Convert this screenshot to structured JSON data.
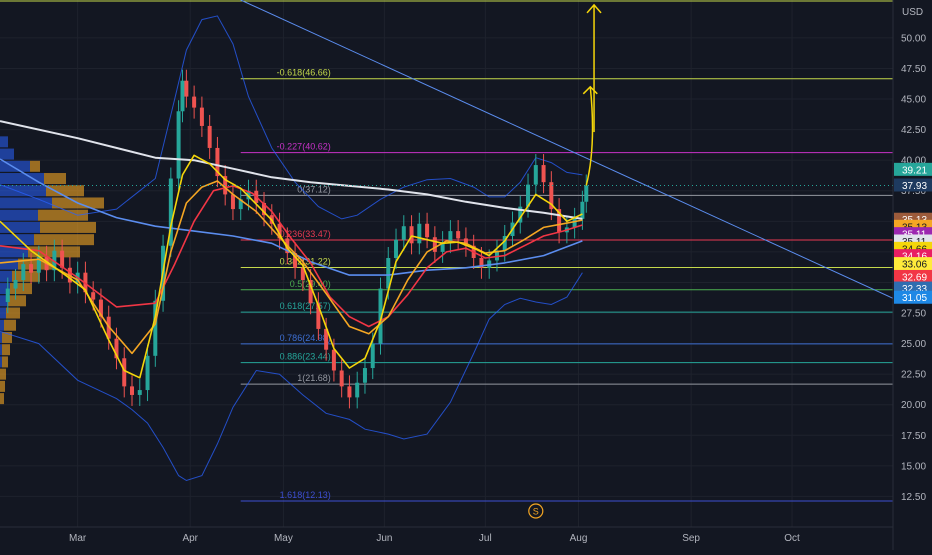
{
  "chart_data": {
    "type": "line",
    "symbol_currency": "USD",
    "price_axis": {
      "ylim": [
        10.0,
        53.1
      ],
      "ticks": [
        12.5,
        15.0,
        17.5,
        20.0,
        22.5,
        25.0,
        27.5,
        30.0,
        32.5,
        35.0,
        37.5,
        40.0,
        42.5,
        45.0,
        47.5,
        50.0
      ]
    },
    "time_axis": {
      "xlim": [
        0,
        230
      ],
      "months": [
        {
          "label": "Mar",
          "day": 20
        },
        {
          "label": "Apr",
          "day": 49
        },
        {
          "label": "May",
          "day": 73
        },
        {
          "label": "Jun",
          "day": 99
        },
        {
          "label": "Jul",
          "day": 125
        },
        {
          "label": "Aug",
          "day": 149
        },
        {
          "label": "Sep",
          "day": 178
        },
        {
          "label": "Oct",
          "day": 204
        }
      ]
    },
    "fib_levels": [
      {
        "label": "-0.618(46.66)",
        "value": 46.66,
        "color": "#c5d94b"
      },
      {
        "label": "-0.227(40.62)",
        "value": 40.62,
        "color": "#c832c8"
      },
      {
        "label": "0(37.12)",
        "value": 37.12,
        "color": "#9598a1"
      },
      {
        "label": "0.236(33.47)",
        "value": 33.47,
        "color": "#e83a52"
      },
      {
        "label": "0.382(31.22)",
        "value": 31.22,
        "color": "#c5d94b"
      },
      {
        "label": "0.5(29.40)",
        "value": 29.4,
        "color": "#4caf50"
      },
      {
        "label": "0.618(27.57)",
        "value": 27.57,
        "color": "#26a69a"
      },
      {
        "label": "0.786(24.98)",
        "value": 24.98,
        "color": "#3d6fd3"
      },
      {
        "label": "0.886(23.44)",
        "value": 23.44,
        "color": "#26a69a"
      },
      {
        "label": "1(21.68)",
        "value": 21.68,
        "color": "#9598a1"
      },
      {
        "label": "1.618(12.13)",
        "value": 12.13,
        "color": "#3d4fd3"
      }
    ],
    "price_tags": [
      {
        "label": "39.21",
        "value": 39.21,
        "color": "#26a69a",
        "text_color": "#ffffff"
      },
      {
        "label": "37.93",
        "value": 37.93,
        "color": "#1e3a5f",
        "text_color": "#ffffff"
      },
      {
        "label": "35.13",
        "value": 35.13,
        "color": "#9c5b3b",
        "text_color": "#ffffff"
      },
      {
        "label": "35.13",
        "value": 34.55,
        "color": "#f5a623",
        "text_color": "#131722"
      },
      {
        "label": "35.11",
        "value": 33.95,
        "color": "#9c27b0",
        "text_color": "#ffffff"
      },
      {
        "label": "35.11",
        "value": 33.35,
        "color": "#e0e3eb",
        "text_color": "#131722"
      },
      {
        "label": "34.66",
        "value": 32.75,
        "color": "#f5d60a",
        "text_color": "#131722"
      },
      {
        "label": "34.16",
        "value": 32.15,
        "color": "#e91e63",
        "text_color": "#ffffff"
      },
      {
        "label": "33.06",
        "value": 31.5,
        "color": "#ffeb3b",
        "text_color": "#131722"
      },
      {
        "label": "32.69",
        "value": 30.45,
        "color": "#f23645",
        "text_color": "#ffffff"
      },
      {
        "label": "32.33",
        "value": 29.5,
        "color": "#2f6db0",
        "text_color": "#ffffff"
      },
      {
        "label": "31.05",
        "value": 28.75,
        "color": "#1e88e5",
        "text_color": "#ffffff"
      }
    ],
    "closes": [
      [
        0,
        28.4
      ],
      [
        2,
        29.5
      ],
      [
        4,
        30.2
      ],
      [
        6,
        31.5
      ],
      [
        8,
        30.8
      ],
      [
        10,
        32.1
      ],
      [
        12,
        31.0
      ],
      [
        14,
        32.6
      ],
      [
        16,
        31.2
      ],
      [
        18,
        30.0
      ],
      [
        20,
        30.8
      ],
      [
        22,
        29.2
      ],
      [
        24,
        28.6
      ],
      [
        26,
        27.2
      ],
      [
        28,
        25.4
      ],
      [
        30,
        23.8
      ],
      [
        32,
        21.5
      ],
      [
        34,
        20.8
      ],
      [
        36,
        21.2
      ],
      [
        38,
        24.0
      ],
      [
        40,
        28.5
      ],
      [
        42,
        33.0
      ],
      [
        44,
        38.5
      ],
      [
        46,
        44.0
      ],
      [
        47,
        46.5
      ],
      [
        48,
        45.2
      ],
      [
        50,
        44.3
      ],
      [
        52,
        42.8
      ],
      [
        54,
        41.0
      ],
      [
        56,
        38.7
      ],
      [
        58,
        37.2
      ],
      [
        60,
        36.0
      ],
      [
        62,
        36.8
      ],
      [
        64,
        37.5
      ],
      [
        66,
        36.5
      ],
      [
        68,
        35.5
      ],
      [
        70,
        34.8
      ],
      [
        72,
        33.6
      ],
      [
        74,
        32.4
      ],
      [
        76,
        31.2
      ],
      [
        78,
        30.2
      ],
      [
        80,
        28.3
      ],
      [
        82,
        26.2
      ],
      [
        84,
        24.5
      ],
      [
        86,
        22.8
      ],
      [
        88,
        21.5
      ],
      [
        90,
        20.6
      ],
      [
        92,
        21.8
      ],
      [
        94,
        23.0
      ],
      [
        96,
        25.0
      ],
      [
        98,
        29.5
      ],
      [
        100,
        32.0
      ],
      [
        102,
        33.5
      ],
      [
        104,
        34.6
      ],
      [
        106,
        33.2
      ],
      [
        108,
        34.8
      ],
      [
        110,
        33.7
      ],
      [
        112,
        32.5
      ],
      [
        114,
        33.3
      ],
      [
        116,
        34.2
      ],
      [
        118,
        33.6
      ],
      [
        120,
        33.0
      ],
      [
        122,
        32.0
      ],
      [
        124,
        31.2
      ],
      [
        126,
        31.8
      ],
      [
        128,
        32.6
      ],
      [
        130,
        33.8
      ],
      [
        132,
        34.9
      ],
      [
        134,
        36.2
      ],
      [
        136,
        38.0
      ],
      [
        138,
        39.6
      ],
      [
        140,
        38.2
      ],
      [
        142,
        36.0
      ],
      [
        144,
        34.1
      ],
      [
        146,
        34.5
      ],
      [
        148,
        35.2
      ],
      [
        150,
        36.6
      ],
      [
        151,
        37.93
      ]
    ],
    "ma_series": [
      {
        "name": "",
        "color": "#e0e3eb",
        "width": 2.0,
        "points": [
          [
            0,
            43.2
          ],
          [
            20,
            41.8
          ],
          [
            40,
            40.2
          ],
          [
            50,
            40.0
          ],
          [
            60,
            39.3
          ],
          [
            70,
            38.6
          ],
          [
            80,
            38.2
          ],
          [
            90,
            37.9
          ],
          [
            100,
            37.6
          ],
          [
            110,
            37.2
          ],
          [
            120,
            36.6
          ],
          [
            130,
            36.1
          ],
          [
            140,
            35.7
          ],
          [
            150,
            35.2
          ]
        ]
      },
      {
        "name": "",
        "color": "#5b8def",
        "width": 1.6,
        "points": [
          [
            0,
            40.1
          ],
          [
            10,
            38.2
          ],
          [
            20,
            36.5
          ],
          [
            30,
            35.3
          ],
          [
            40,
            34.6
          ],
          [
            50,
            34.2
          ],
          [
            60,
            33.8
          ],
          [
            70,
            33.2
          ],
          [
            80,
            31.7
          ],
          [
            90,
            30.6
          ],
          [
            100,
            30.6
          ],
          [
            110,
            31.0
          ],
          [
            120,
            31.2
          ],
          [
            130,
            31.6
          ],
          [
            140,
            32.2
          ],
          [
            150,
            33.4
          ]
        ]
      },
      {
        "name": "",
        "color": "#f23645",
        "width": 1.6,
        "points": [
          [
            0,
            33.0
          ],
          [
            10,
            32.6
          ],
          [
            20,
            30.4
          ],
          [
            30,
            28.0
          ],
          [
            40,
            28.3
          ],
          [
            45,
            31.5
          ],
          [
            50,
            35.0
          ],
          [
            55,
            37.5
          ],
          [
            60,
            37.9
          ],
          [
            65,
            37.3
          ],
          [
            70,
            35.8
          ],
          [
            75,
            33.6
          ],
          [
            80,
            31.6
          ],
          [
            85,
            28.8
          ],
          [
            90,
            27.2
          ],
          [
            95,
            26.4
          ],
          [
            100,
            27.2
          ],
          [
            105,
            29.0
          ],
          [
            110,
            31.2
          ],
          [
            115,
            32.5
          ],
          [
            120,
            32.8
          ],
          [
            125,
            32.0
          ],
          [
            130,
            32.2
          ],
          [
            135,
            33.0
          ],
          [
            140,
            33.8
          ],
          [
            145,
            34.2
          ],
          [
            150,
            34.7
          ]
        ]
      },
      {
        "name": "",
        "color": "#f5a623",
        "width": 1.6,
        "points": [
          [
            0,
            31.6
          ],
          [
            10,
            31.9
          ],
          [
            20,
            30.2
          ],
          [
            28,
            26.4
          ],
          [
            34,
            24.2
          ],
          [
            40,
            26.6
          ],
          [
            44,
            32.5
          ],
          [
            48,
            36.5
          ],
          [
            52,
            37.8
          ],
          [
            56,
            38.3
          ],
          [
            60,
            37.2
          ],
          [
            66,
            35.8
          ],
          [
            72,
            33.7
          ],
          [
            78,
            31.7
          ],
          [
            84,
            29.1
          ],
          [
            90,
            26.4
          ],
          [
            95,
            25.8
          ],
          [
            100,
            27.2
          ],
          [
            105,
            30.2
          ],
          [
            110,
            32.5
          ],
          [
            115,
            33.4
          ],
          [
            120,
            33.2
          ],
          [
            125,
            32.4
          ],
          [
            130,
            32.6
          ],
          [
            135,
            33.5
          ],
          [
            140,
            34.5
          ],
          [
            145,
            34.8
          ],
          [
            150,
            35.1
          ]
        ]
      },
      {
        "name": "",
        "color": "#f5d60a",
        "width": 1.6,
        "points": [
          [
            0,
            35.0
          ],
          [
            8,
            32.6
          ],
          [
            16,
            30.8
          ],
          [
            22,
            29.4
          ],
          [
            28,
            25.3
          ],
          [
            32,
            22.8
          ],
          [
            36,
            22.2
          ],
          [
            40,
            27.2
          ],
          [
            44,
            34.6
          ],
          [
            47,
            38.8
          ],
          [
            50,
            40.4
          ],
          [
            54,
            39.7
          ],
          [
            58,
            38.4
          ],
          [
            62,
            37.7
          ],
          [
            66,
            36.4
          ],
          [
            70,
            35.1
          ],
          [
            74,
            32.8
          ],
          [
            78,
            31.4
          ],
          [
            82,
            28.1
          ],
          [
            86,
            24.6
          ],
          [
            90,
            23.0
          ],
          [
            94,
            23.8
          ],
          [
            98,
            26.9
          ],
          [
            102,
            31.7
          ],
          [
            106,
            33.8
          ],
          [
            110,
            33.5
          ],
          [
            114,
            33.2
          ],
          [
            118,
            33.3
          ],
          [
            122,
            32.8
          ],
          [
            126,
            32.2
          ],
          [
            130,
            33.4
          ],
          [
            134,
            35.3
          ],
          [
            138,
            37.2
          ],
          [
            142,
            36.4
          ],
          [
            146,
            35.0
          ],
          [
            150,
            35.6
          ]
        ]
      }
    ],
    "bollinger_upper": [
      [
        0,
        38.0
      ],
      [
        10,
        36.8
      ],
      [
        20,
        35.5
      ],
      [
        30,
        36.0
      ],
      [
        40,
        38.5
      ],
      [
        45,
        45.0
      ],
      [
        48,
        49.0
      ],
      [
        52,
        51.5
      ],
      [
        56,
        51.8
      ],
      [
        60,
        49.5
      ],
      [
        64,
        45.2
      ],
      [
        70,
        41.0
      ],
      [
        76,
        38.2
      ],
      [
        82,
        36.2
      ],
      [
        88,
        35.2
      ],
      [
        92,
        35.5
      ],
      [
        98,
        36.8
      ],
      [
        104,
        37.8
      ],
      [
        110,
        38.4
      ],
      [
        116,
        38.5
      ],
      [
        122,
        37.8
      ],
      [
        126,
        37.0
      ],
      [
        130,
        37.0
      ],
      [
        134,
        38.2
      ],
      [
        138,
        40.2
      ],
      [
        142,
        39.8
      ],
      [
        146,
        39.0
      ],
      [
        150,
        38.8
      ]
    ],
    "bollinger_lower": [
      [
        0,
        26.0
      ],
      [
        10,
        25.0
      ],
      [
        20,
        22.0
      ],
      [
        30,
        20.5
      ],
      [
        34,
        19.6
      ],
      [
        38,
        18.5
      ],
      [
        42,
        16.5
      ],
      [
        46,
        14.2
      ],
      [
        48,
        13.8
      ],
      [
        52,
        14.2
      ],
      [
        56,
        16.8
      ],
      [
        60,
        19.8
      ],
      [
        66,
        22.8
      ],
      [
        72,
        22.5
      ],
      [
        78,
        20.8
      ],
      [
        84,
        19.3
      ],
      [
        90,
        18.8
      ],
      [
        94,
        18.0
      ],
      [
        100,
        17.6
      ],
      [
        104,
        17.2
      ],
      [
        110,
        17.6
      ],
      [
        116,
        20.2
      ],
      [
        122,
        24.2
      ],
      [
        126,
        27.0
      ],
      [
        130,
        28.2
      ],
      [
        134,
        28.7
      ],
      [
        138,
        28.4
      ],
      [
        142,
        28.2
      ],
      [
        146,
        28.8
      ],
      [
        150,
        30.8
      ]
    ],
    "trendline": {
      "from": [
        62,
        53.1
      ],
      "to": [
        230,
        28.7
      ],
      "color": "#5b8def"
    },
    "top_line": {
      "value": 53.1,
      "color": "#c5d94b"
    },
    "projection_arrows": [
      {
        "from": [
          153,
          42.3
        ],
        "to": [
          153,
          52.7
        ],
        "color": "#f5d60a"
      },
      {
        "from": [
          151,
          37.93
        ],
        "to": [
          151,
          46.0
        ],
        "color": "#f5d60a",
        "curved": true
      }
    ],
    "volume_profile": [
      {
        "price": 41.5,
        "a": 8,
        "b": 0
      },
      {
        "price": 40.5,
        "a": 14,
        "b": 0
      },
      {
        "price": 39.5,
        "a": 30,
        "b": 10
      },
      {
        "price": 38.5,
        "a": 44,
        "b": 22
      },
      {
        "price": 37.5,
        "a": 46,
        "b": 38
      },
      {
        "price": 36.5,
        "a": 52,
        "b": 52
      },
      {
        "price": 35.5,
        "a": 38,
        "b": 50
      },
      {
        "price": 34.5,
        "a": 40,
        "b": 56
      },
      {
        "price": 33.5,
        "a": 34,
        "b": 60
      },
      {
        "price": 32.5,
        "a": 28,
        "b": 52
      },
      {
        "price": 31.5,
        "a": 18,
        "b": 36
      },
      {
        "price": 30.5,
        "a": 12,
        "b": 28
      },
      {
        "price": 29.5,
        "a": 10,
        "b": 22
      },
      {
        "price": 28.5,
        "a": 8,
        "b": 18
      },
      {
        "price": 27.5,
        "a": 6,
        "b": 14
      },
      {
        "price": 26.5,
        "a": 4,
        "b": 12
      },
      {
        "price": 25.5,
        "a": 2,
        "b": 10
      },
      {
        "price": 24.5,
        "a": 2,
        "b": 8
      },
      {
        "price": 23.5,
        "a": 2,
        "b": 6
      },
      {
        "price": 22.5,
        "a": 0,
        "b": 6
      },
      {
        "price": 21.5,
        "a": 0,
        "b": 5
      },
      {
        "price": 20.5,
        "a": 0,
        "b": 4
      }
    ],
    "event_badge": {
      "label": "S",
      "day": 138,
      "color": "#f5a623"
    }
  }
}
